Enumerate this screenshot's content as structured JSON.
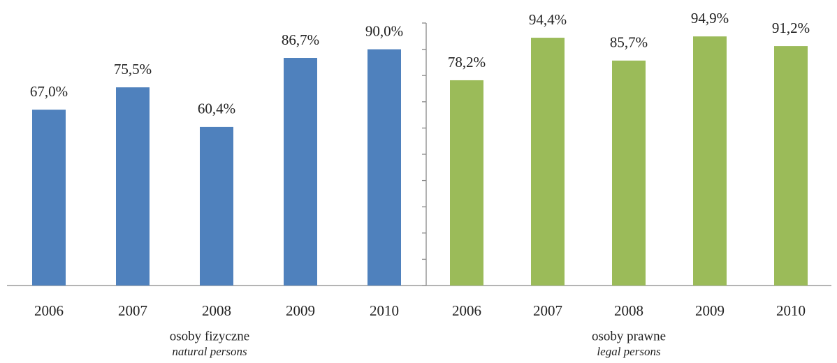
{
  "chart_data": [
    {
      "type": "bar",
      "categories": [
        "2006",
        "2007",
        "2008",
        "2009",
        "2010"
      ],
      "values": [
        67.0,
        75.5,
        60.4,
        86.7,
        90.0
      ],
      "value_labels": [
        "67,0%",
        "75,5%",
        "60,4%",
        "86,7%",
        "90,0%"
      ],
      "color": "#4f81bd",
      "xlabel": "osoby fizyczne",
      "xlabel_en": "natural persons",
      "ylim": [
        0,
        100
      ]
    },
    {
      "type": "bar",
      "categories": [
        "2006",
        "2007",
        "2008",
        "2009",
        "2010"
      ],
      "values": [
        78.2,
        94.4,
        85.7,
        94.9,
        91.2
      ],
      "value_labels": [
        "78,2%",
        "94,4%",
        "85,7%",
        "94,9%",
        "91,2%"
      ],
      "color": "#9bbb59",
      "xlabel": "osoby prawne",
      "xlabel_en": "legal persons",
      "ylim": [
        0,
        100
      ],
      "yticks": [
        0,
        10,
        20,
        30,
        40,
        50,
        60,
        70,
        80,
        90,
        100
      ]
    }
  ]
}
